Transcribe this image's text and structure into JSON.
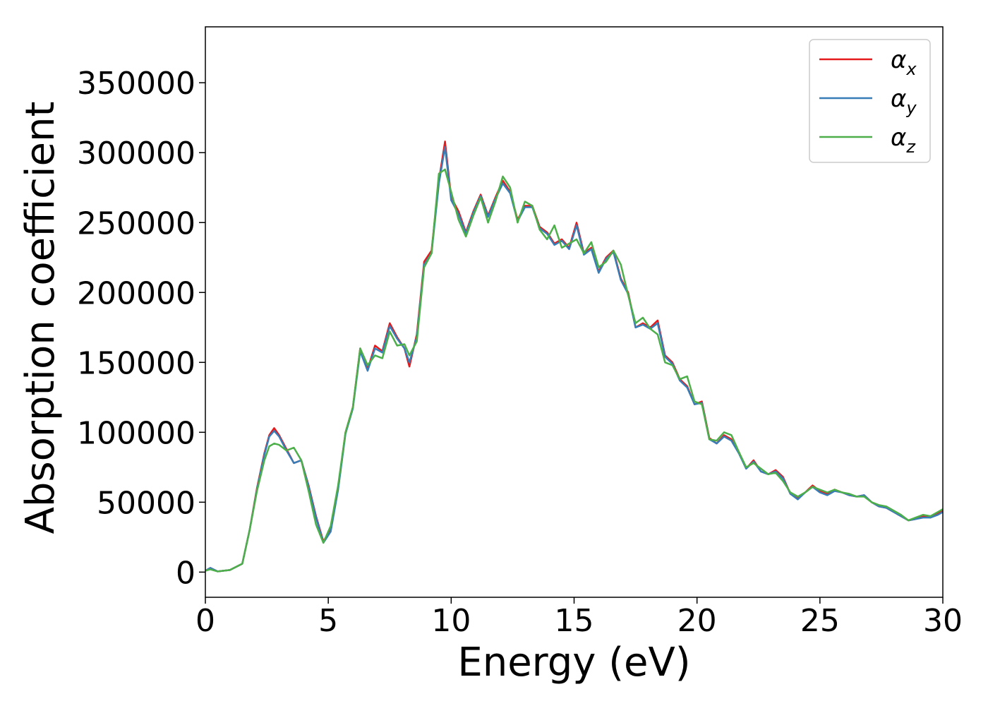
{
  "chart_data": {
    "type": "line",
    "title": "",
    "xlabel": "Energy (eV)",
    "ylabel": "Absorption coefficient",
    "xlim": [
      0,
      30
    ],
    "ylim": [
      -18000,
      390000
    ],
    "xticks": [
      0,
      5,
      10,
      15,
      20,
      25,
      30
    ],
    "xtick_labels": [
      "0",
      "5",
      "10",
      "15",
      "20",
      "25",
      "30"
    ],
    "yticks": [
      0,
      50000,
      100000,
      150000,
      200000,
      250000,
      300000,
      350000
    ],
    "ytick_labels": [
      "0",
      "50000",
      "100000",
      "150000",
      "200000",
      "250000",
      "300000",
      "350000"
    ],
    "grid": false,
    "legend_position": "top-right",
    "series": [
      {
        "name": "α",
        "subscript": "x",
        "color": "#e41a1c",
        "x": [
          0,
          0.2,
          0.5,
          1.0,
          1.5,
          1.8,
          2.1,
          2.4,
          2.6,
          2.8,
          3.0,
          3.3,
          3.6,
          3.9,
          4.2,
          4.5,
          4.8,
          5.1,
          5.4,
          5.7,
          6.0,
          6.3,
          6.6,
          6.9,
          7.2,
          7.5,
          7.8,
          8.1,
          8.3,
          8.6,
          8.9,
          9.2,
          9.5,
          9.75,
          10.0,
          10.3,
          10.6,
          10.9,
          11.2,
          11.5,
          11.8,
          12.1,
          12.4,
          12.7,
          13.0,
          13.3,
          13.6,
          13.9,
          14.2,
          14.5,
          14.8,
          15.1,
          15.4,
          15.7,
          16.0,
          16.3,
          16.6,
          16.9,
          17.2,
          17.5,
          17.8,
          18.1,
          18.4,
          18.7,
          19.0,
          19.3,
          19.6,
          19.9,
          20.2,
          20.5,
          20.8,
          21.1,
          21.4,
          21.7,
          22.0,
          22.3,
          22.6,
          22.9,
          23.2,
          23.5,
          23.8,
          24.1,
          24.4,
          24.7,
          25.0,
          25.3,
          25.6,
          25.9,
          26.2,
          26.5,
          26.8,
          27.1,
          27.4,
          27.7,
          28.0,
          28.3,
          28.6,
          28.9,
          29.2,
          29.5,
          29.8,
          30.0
        ],
        "y": [
          1000,
          3000,
          500,
          1500,
          6000,
          30000,
          60000,
          85000,
          98000,
          103000,
          98000,
          88000,
          78000,
          80000,
          62000,
          40000,
          22000,
          30000,
          60000,
          100000,
          118000,
          160000,
          145000,
          162000,
          158000,
          178000,
          168000,
          160000,
          147000,
          170000,
          222000,
          230000,
          280000,
          308000,
          268000,
          258000,
          243000,
          258000,
          270000,
          255000,
          268000,
          280000,
          272000,
          252000,
          262000,
          262000,
          247000,
          243000,
          235000,
          238000,
          232000,
          250000,
          228000,
          232000,
          215000,
          225000,
          230000,
          210000,
          200000,
          175000,
          178000,
          175000,
          180000,
          155000,
          150000,
          138000,
          133000,
          120000,
          122000,
          96000,
          92000,
          98000,
          95000,
          86000,
          74000,
          80000,
          72000,
          70000,
          73000,
          68000,
          56000,
          53000,
          57000,
          62000,
          58000,
          56000,
          59000,
          57000,
          55000,
          54000,
          55000,
          50000,
          47000,
          46000,
          43000,
          40000,
          37000,
          38000,
          40000,
          39000,
          42000,
          44000
        ]
      },
      {
        "name": "α",
        "subscript": "y",
        "color": "#377eb8",
        "x": [
          0,
          0.2,
          0.5,
          1.0,
          1.5,
          1.8,
          2.1,
          2.4,
          2.6,
          2.8,
          3.0,
          3.3,
          3.6,
          3.9,
          4.2,
          4.5,
          4.8,
          5.1,
          5.4,
          5.7,
          6.0,
          6.3,
          6.6,
          6.9,
          7.2,
          7.5,
          7.8,
          8.1,
          8.3,
          8.6,
          8.9,
          9.2,
          9.5,
          9.75,
          10.0,
          10.3,
          10.6,
          10.9,
          11.2,
          11.5,
          11.8,
          12.1,
          12.4,
          12.7,
          13.0,
          13.3,
          13.6,
          13.9,
          14.2,
          14.5,
          14.8,
          15.1,
          15.4,
          15.7,
          16.0,
          16.3,
          16.6,
          16.9,
          17.2,
          17.5,
          17.8,
          18.1,
          18.4,
          18.7,
          19.0,
          19.3,
          19.6,
          19.9,
          20.2,
          20.5,
          20.8,
          21.1,
          21.4,
          21.7,
          22.0,
          22.3,
          22.6,
          22.9,
          23.2,
          23.5,
          23.8,
          24.1,
          24.4,
          24.7,
          25.0,
          25.3,
          25.6,
          25.9,
          26.2,
          26.5,
          26.8,
          27.1,
          27.4,
          27.7,
          28.0,
          28.3,
          28.6,
          28.9,
          29.2,
          29.5,
          29.8,
          30.0
        ],
        "y": [
          1000,
          3000,
          500,
          1500,
          6000,
          30000,
          59000,
          84000,
          97000,
          101000,
          97000,
          87000,
          78000,
          80000,
          61000,
          39000,
          21000,
          29000,
          59000,
          99000,
          117000,
          158000,
          144000,
          160000,
          157000,
          176000,
          167000,
          160000,
          150000,
          168000,
          220000,
          228000,
          278000,
          304000,
          266000,
          256000,
          242000,
          257000,
          269000,
          254000,
          267000,
          278000,
          271000,
          251000,
          261000,
          261000,
          246000,
          242000,
          234000,
          237000,
          231000,
          248000,
          227000,
          231000,
          214000,
          224000,
          229000,
          209000,
          199000,
          175000,
          177000,
          174000,
          178000,
          154000,
          149000,
          137000,
          132000,
          120000,
          121000,
          95000,
          92000,
          97000,
          94000,
          85000,
          74000,
          79000,
          72000,
          70000,
          72000,
          67000,
          56000,
          52000,
          57000,
          61000,
          57000,
          55000,
          58000,
          57000,
          55000,
          54000,
          55000,
          50000,
          47000,
          46000,
          43000,
          40000,
          37000,
          38000,
          39000,
          39000,
          41000,
          43000
        ]
      },
      {
        "name": "α",
        "subscript": "z",
        "color": "#4daf4a",
        "x": [
          0,
          0.2,
          0.5,
          1.0,
          1.5,
          1.8,
          2.1,
          2.4,
          2.6,
          2.8,
          3.0,
          3.3,
          3.6,
          3.9,
          4.2,
          4.5,
          4.8,
          5.1,
          5.4,
          5.7,
          6.0,
          6.3,
          6.6,
          6.9,
          7.2,
          7.5,
          7.8,
          8.1,
          8.3,
          8.6,
          8.9,
          9.2,
          9.5,
          9.75,
          10.0,
          10.3,
          10.6,
          10.9,
          11.2,
          11.5,
          11.8,
          12.1,
          12.4,
          12.7,
          13.0,
          13.3,
          13.6,
          13.9,
          14.2,
          14.5,
          14.8,
          15.1,
          15.4,
          15.7,
          16.0,
          16.3,
          16.6,
          16.9,
          17.2,
          17.5,
          17.8,
          18.1,
          18.4,
          18.7,
          19.0,
          19.3,
          19.6,
          19.9,
          20.2,
          20.5,
          20.8,
          21.1,
          21.4,
          21.7,
          22.0,
          22.3,
          22.6,
          22.9,
          23.2,
          23.5,
          23.8,
          24.1,
          24.4,
          24.7,
          25.0,
          25.3,
          25.6,
          25.9,
          26.2,
          26.5,
          26.8,
          27.1,
          27.4,
          27.7,
          28.0,
          28.3,
          28.6,
          28.9,
          29.2,
          29.5,
          29.8,
          30.0
        ],
        "y": [
          1000,
          2000,
          500,
          1500,
          6000,
          30000,
          58000,
          80000,
          90000,
          92000,
          91000,
          87000,
          89000,
          80000,
          58000,
          34000,
          21000,
          33000,
          62000,
          100000,
          118000,
          160000,
          148000,
          155000,
          153000,
          172000,
          162000,
          163000,
          155000,
          165000,
          218000,
          228000,
          285000,
          288000,
          272000,
          252000,
          240000,
          255000,
          268000,
          250000,
          265000,
          283000,
          275000,
          250000,
          265000,
          262000,
          245000,
          238000,
          248000,
          232000,
          235000,
          238000,
          228000,
          236000,
          218000,
          222000,
          230000,
          220000,
          198000,
          178000,
          182000,
          174000,
          170000,
          150000,
          148000,
          138000,
          140000,
          122000,
          120000,
          95000,
          94000,
          100000,
          98000,
          86000,
          75000,
          78000,
          74000,
          70000,
          71000,
          65000,
          57000,
          54000,
          57000,
          61000,
          59000,
          57000,
          59000,
          57000,
          56000,
          54000,
          54000,
          50000,
          48000,
          47000,
          44000,
          41000,
          37000,
          39000,
          41000,
          40000,
          43000,
          45000
        ]
      }
    ]
  }
}
